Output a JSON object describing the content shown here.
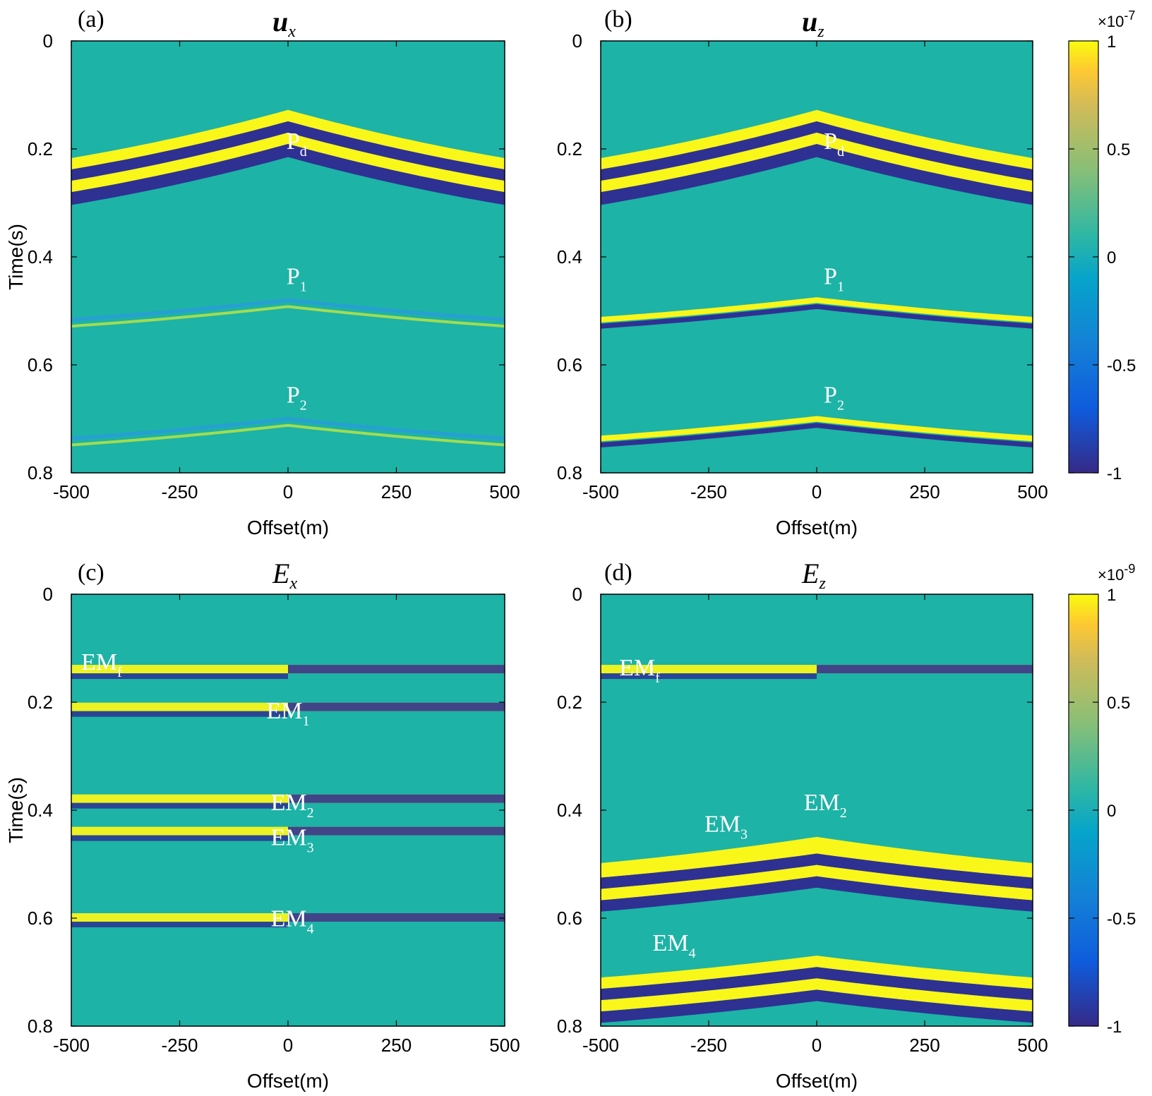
{
  "figure": {
    "colors": {
      "background": "#1db3a6",
      "positive": "#f9f61a",
      "negative": "#2e3192",
      "accent": "#2a9adf"
    },
    "panels": [
      {
        "id": "a",
        "label": "(a)",
        "title": "u",
        "title_sub": "x",
        "xlabel": "Offset(m)",
        "ylabel": "Time(s)",
        "annotations": [
          {
            "main": "P",
            "sub": "d",
            "offset": 20,
            "time": 0.2
          },
          {
            "main": "P",
            "sub": "1",
            "offset": 20,
            "time": 0.45
          },
          {
            "main": "P",
            "sub": "2",
            "offset": 20,
            "time": 0.67
          }
        ]
      },
      {
        "id": "b",
        "label": "(b)",
        "title": "u",
        "title_sub": "z",
        "xlabel": "Offset(m)",
        "ylabel": "",
        "annotations": [
          {
            "main": "P",
            "sub": "d",
            "offset": 40,
            "time": 0.2
          },
          {
            "main": "P",
            "sub": "1",
            "offset": 40,
            "time": 0.45
          },
          {
            "main": "P",
            "sub": "2",
            "offset": 40,
            "time": 0.67
          }
        ]
      },
      {
        "id": "c",
        "label": "(c)",
        "title": "E",
        "title_sub": "x",
        "xlabel": "Offset(m)",
        "ylabel": "Time(s)",
        "annotations": [
          {
            "main": "EM",
            "sub": "f",
            "offset": -430,
            "time": 0.14
          },
          {
            "main": "EM",
            "sub": "1",
            "offset": 0,
            "time": 0.23
          },
          {
            "main": "EM",
            "sub": "2",
            "offset": 10,
            "time": 0.4
          },
          {
            "main": "EM",
            "sub": "3",
            "offset": 10,
            "time": 0.465
          },
          {
            "main": "EM",
            "sub": "4",
            "offset": 10,
            "time": 0.615
          }
        ]
      },
      {
        "id": "d",
        "label": "(d)",
        "title": "E",
        "title_sub": "z",
        "xlabel": "Offset(m)",
        "ylabel": "",
        "annotations": [
          {
            "main": "EM",
            "sub": "f",
            "offset": -410,
            "time": 0.15
          },
          {
            "main": "EM",
            "sub": "2",
            "offset": 20,
            "time": 0.4
          },
          {
            "main": "EM",
            "sub": "3",
            "offset": -210,
            "time": 0.44
          },
          {
            "main": "EM",
            "sub": "4",
            "offset": -330,
            "time": 0.66
          }
        ]
      }
    ],
    "colorbars": [
      {
        "exponent_base": "×10",
        "exponent": "-7",
        "ticks": [
          "1",
          "0.5",
          "0",
          "-0.5",
          "-1"
        ]
      },
      {
        "exponent_base": "×10",
        "exponent": "-9",
        "ticks": [
          "1",
          "0.5",
          "0",
          "-0.5",
          "-1"
        ]
      }
    ]
  },
  "chart_data": [
    {
      "type": "heatmap",
      "title": "u_x",
      "xlabel": "Offset(m)",
      "ylabel": "Time(s)",
      "x_ticks": [
        "-500",
        "-250",
        "0",
        "250",
        "500"
      ],
      "y_ticks": [
        "0",
        "0.2",
        "0.4",
        "0.6",
        "0.8"
      ],
      "xlim": [
        -500,
        500
      ],
      "ylim": [
        0,
        0.8
      ],
      "clim": [
        -1e-07,
        1e-07
      ],
      "events": [
        {
          "name": "P_d",
          "t0": 0.14,
          "slope": 0.00022,
          "style": "hyperbola",
          "polarity_flip_at_zero": true
        },
        {
          "name": "P_1",
          "t0": 0.48,
          "slope": 9e-05,
          "style": "weak"
        },
        {
          "name": "P_2",
          "t0": 0.7,
          "slope": 9e-05,
          "style": "weak"
        }
      ]
    },
    {
      "type": "heatmap",
      "title": "u_z",
      "xlabel": "Offset(m)",
      "ylabel": "Time(s)",
      "x_ticks": [
        "-500",
        "-250",
        "0",
        "250",
        "500"
      ],
      "y_ticks": [
        "0",
        "0.2",
        "0.4",
        "0.6",
        "0.8"
      ],
      "xlim": [
        -500,
        500
      ],
      "ylim": [
        0,
        0.8
      ],
      "clim": [
        -1e-07,
        1e-07
      ],
      "events": [
        {
          "name": "P_d",
          "t0": 0.14,
          "slope": 0.00022,
          "style": "hyperbola"
        },
        {
          "name": "P_1",
          "t0": 0.48,
          "slope": 9e-05,
          "style": "strong"
        },
        {
          "name": "P_2",
          "t0": 0.7,
          "slope": 9e-05,
          "style": "strong"
        }
      ]
    },
    {
      "type": "heatmap",
      "title": "E_x",
      "xlabel": "Offset(m)",
      "ylabel": "Time(s)",
      "x_ticks": [
        "-500",
        "-250",
        "0",
        "250",
        "500"
      ],
      "y_ticks": [
        "0",
        "0.2",
        "0.4",
        "0.6",
        "0.8"
      ],
      "xlim": [
        -500,
        500
      ],
      "ylim": [
        0,
        0.8
      ],
      "clim": [
        -1e-09,
        1e-09
      ],
      "events": [
        {
          "name": "EM_f",
          "time": 0.14,
          "style": "flat"
        },
        {
          "name": "EM_1",
          "time": 0.21,
          "style": "flat"
        },
        {
          "name": "EM_2",
          "time": 0.38,
          "style": "flat"
        },
        {
          "name": "EM_3",
          "time": 0.44,
          "style": "flat"
        },
        {
          "name": "EM_4",
          "time": 0.6,
          "style": "flat"
        }
      ]
    },
    {
      "type": "heatmap",
      "title": "E_z",
      "xlabel": "Offset(m)",
      "ylabel": "Time(s)",
      "x_ticks": [
        "-500",
        "-250",
        "0",
        "250",
        "500"
      ],
      "y_ticks": [
        "0",
        "0.2",
        "0.4",
        "0.6",
        "0.8"
      ],
      "xlim": [
        -500,
        500
      ],
      "ylim": [
        0,
        0.8
      ],
      "clim": [
        -1e-09,
        1e-09
      ],
      "events": [
        {
          "name": "EM_f",
          "time": 0.14,
          "style": "flat"
        },
        {
          "name": "EM_2",
          "t0": 0.46,
          "slope": 0.00012,
          "style": "hyperbola"
        },
        {
          "name": "EM_3",
          "t0": 0.47,
          "slope": 0.00011,
          "style": "hyperbola"
        },
        {
          "name": "EM_4",
          "t0": 0.68,
          "slope": 0.0001,
          "style": "hyperbola"
        }
      ]
    }
  ]
}
